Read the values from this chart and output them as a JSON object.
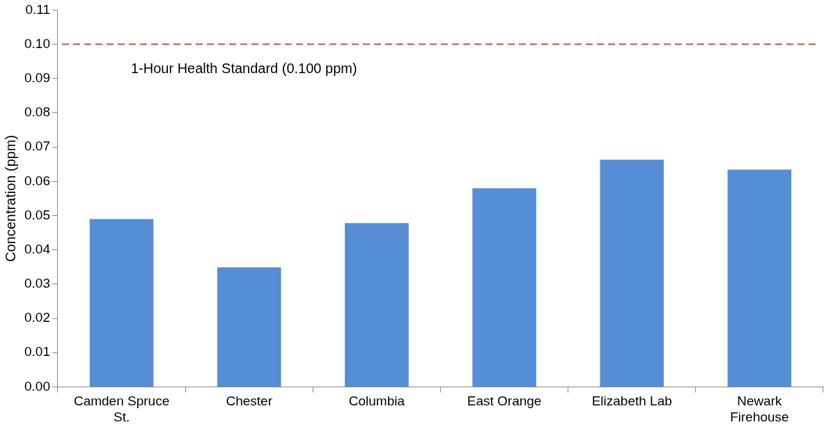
{
  "chart_data": {
    "type": "bar",
    "ylabel": "Concentration (ppm)",
    "categories": [
      "Camden Spruce St.",
      "Chester",
      "Columbia",
      "East Orange",
      "Elizabeth Lab",
      "Newark Firehouse"
    ],
    "values": [
      0.049,
      0.0349,
      0.0478,
      0.058,
      0.0663,
      0.0634
    ],
    "color": "#558ed5",
    "ylim": [
      0,
      0.11
    ],
    "yticks": [
      {
        "value": 0,
        "label": "0.00"
      },
      {
        "value": 0.01,
        "label": "0.01"
      },
      {
        "value": 0.02,
        "label": "0.02"
      },
      {
        "value": 0.03,
        "label": "0.03"
      },
      {
        "value": 0.04,
        "label": "0.04"
      },
      {
        "value": 0.05,
        "label": "0.05"
      },
      {
        "value": 0.06,
        "label": "0.06"
      },
      {
        "value": 0.07,
        "label": "0.07"
      },
      {
        "value": 0.08,
        "label": "0.08"
      },
      {
        "value": 0.09,
        "label": "0.09"
      },
      {
        "value": 0.1,
        "label": "0.10"
      },
      {
        "value": 0.11,
        "label": "0.11"
      }
    ],
    "ref_lines": [
      {
        "axis": "y",
        "value": 0.1,
        "label": "1-Hour Health Standard (0.100 ppm)",
        "color": "#c0504d",
        "line_style": "dashed"
      }
    ],
    "grid": false,
    "legend": false
  }
}
